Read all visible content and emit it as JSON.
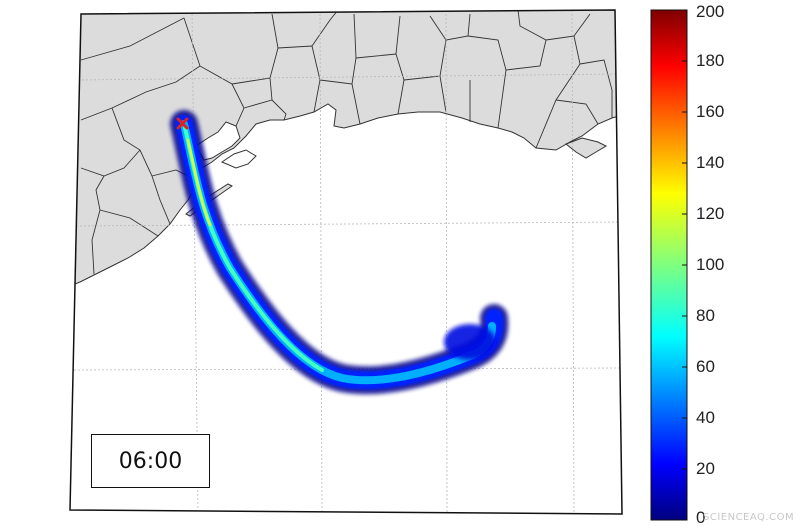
{
  "map": {
    "time_label": "06:00",
    "source_marker": "x-marker",
    "plume": {
      "description_kind": "concentration-plume",
      "peak_color": "#ff6a00"
    }
  },
  "colorbar": {
    "min": 0,
    "max": 200,
    "ticks": [
      "200",
      "180",
      "160",
      "140",
      "120",
      "100",
      "80",
      "60",
      "40",
      "20",
      "0"
    ],
    "colormap": "jet"
  },
  "watermark": "SCIENCEAQ.COM",
  "colors": {
    "land": "#dcdcdc",
    "water": "#ffffff",
    "border": "#333333",
    "marker": "#e0201c"
  }
}
